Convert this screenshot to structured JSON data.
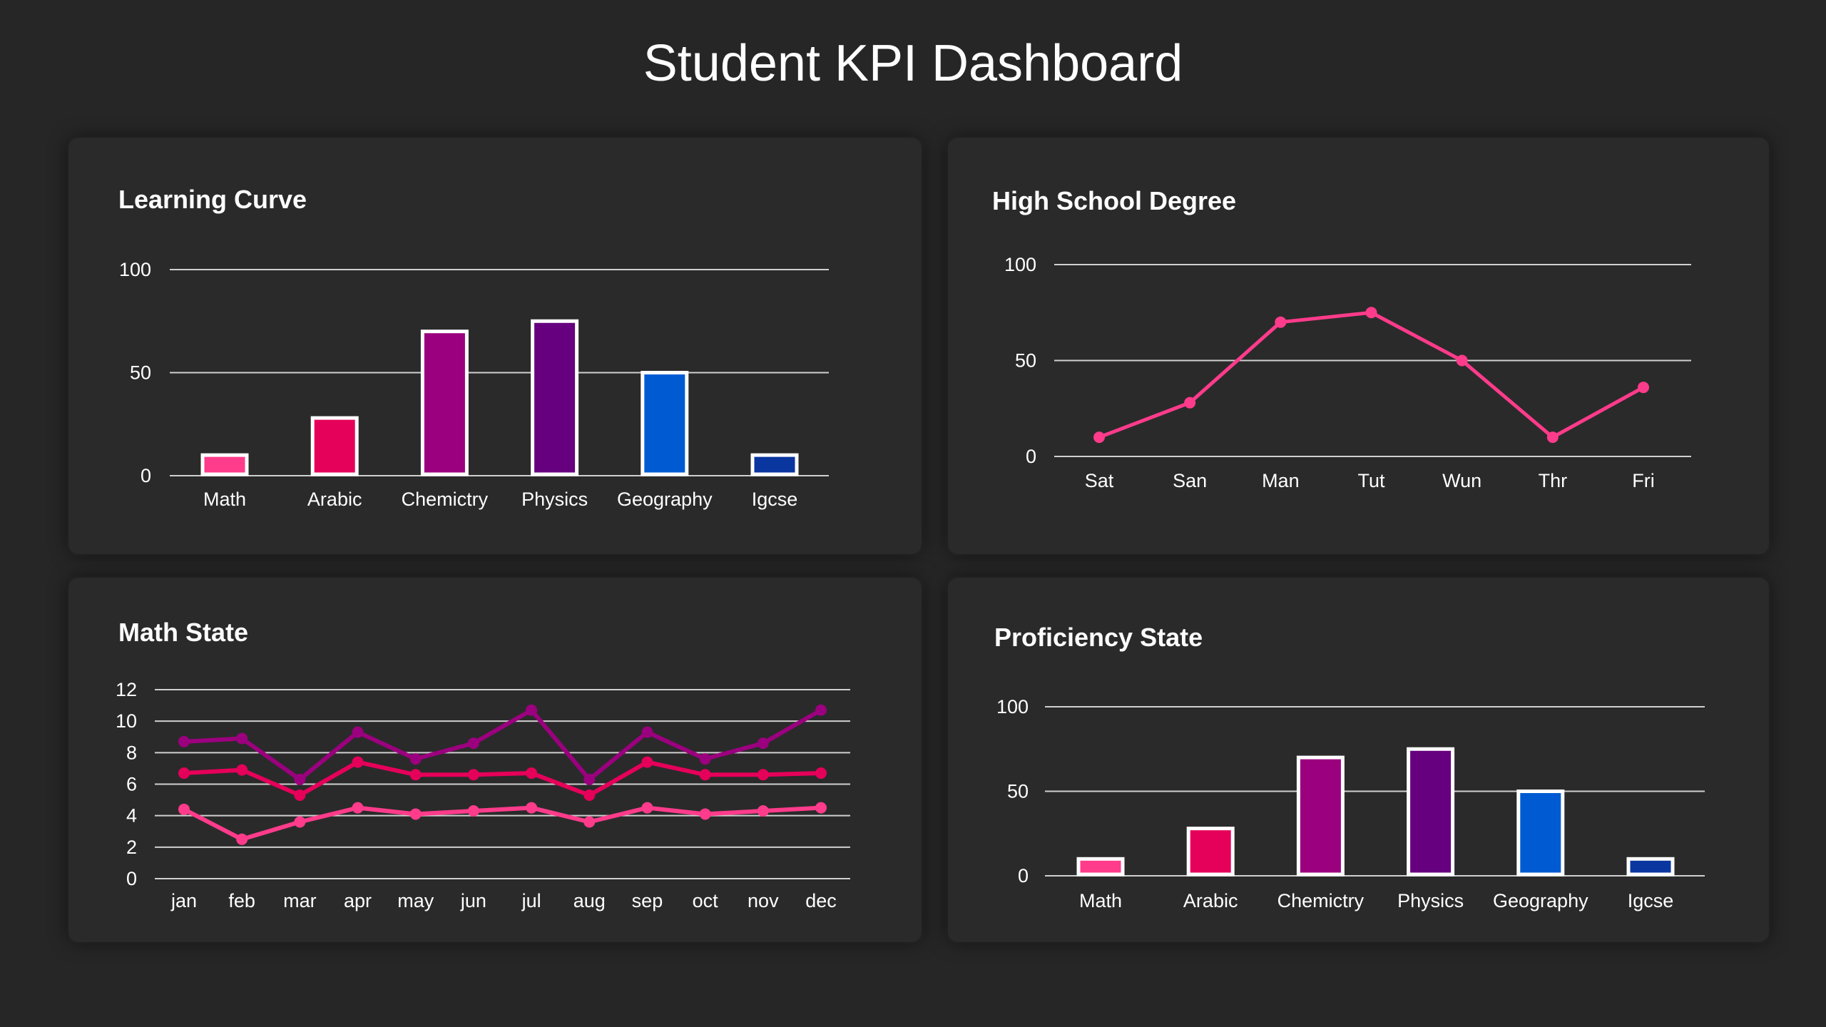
{
  "page": {
    "title": "Student KPI Dashboard"
  },
  "colors": {
    "background": "#262626",
    "card": "#2a2a2a",
    "grid": "#d0d0d0"
  },
  "chart_data": [
    {
      "type": "bar",
      "title": "Learning Curve",
      "categories": [
        "Math",
        "Arabic",
        "Chemictry",
        "Physics",
        "Geography",
        "Igcse"
      ],
      "values": [
        10,
        28,
        70,
        75,
        50,
        10
      ],
      "colors": [
        "#ff3b8b",
        "#e5005a",
        "#9b007e",
        "#66007e",
        "#005bd3",
        "#0a36a0"
      ],
      "yticks": [
        0,
        50,
        100
      ],
      "ylim": [
        0,
        100
      ],
      "grid": true
    },
    {
      "type": "line",
      "title": "High School Degree",
      "categories": [
        "Sat",
        "San",
        "Man",
        "Tut",
        "Wun",
        "Thr",
        "Fri"
      ],
      "series": [
        {
          "values": [
            10,
            28,
            70,
            75,
            50,
            10,
            36
          ],
          "color": "#ff3b8b"
        }
      ],
      "yticks": [
        0,
        50,
        100
      ],
      "ylim": [
        0,
        100
      ],
      "grid": true
    },
    {
      "type": "line",
      "title": "Math State",
      "categories": [
        "jan",
        "feb",
        "mar",
        "apr",
        "may",
        "jun",
        "jul",
        "aug",
        "sep",
        "oct",
        "nov",
        "dec"
      ],
      "series": [
        {
          "values": [
            8.7,
            8.9,
            6.3,
            9.3,
            7.6,
            8.6,
            10.7,
            6.3,
            9.3,
            7.6,
            8.6,
            10.7
          ],
          "color": "#9b007e"
        },
        {
          "values": [
            6.7,
            6.9,
            5.3,
            7.4,
            6.6,
            6.6,
            6.7,
            5.3,
            7.4,
            6.6,
            6.6,
            6.7
          ],
          "color": "#e5005a"
        },
        {
          "values": [
            4.4,
            2.5,
            3.6,
            4.5,
            4.1,
            4.3,
            4.5,
            3.6,
            4.5,
            4.1,
            4.3,
            4.5
          ],
          "color": "#ff3b8b"
        }
      ],
      "yticks": [
        0,
        2,
        4,
        6,
        8,
        10,
        12
      ],
      "ylim": [
        0,
        12
      ],
      "grid": true
    },
    {
      "type": "bar",
      "title": "Proficiency State",
      "categories": [
        "Math",
        "Arabic",
        "Chemictry",
        "Physics",
        "Geography",
        "Igcse"
      ],
      "values": [
        10,
        28,
        70,
        75,
        50,
        10
      ],
      "colors": [
        "#ff3b8b",
        "#e5005a",
        "#9b007e",
        "#66007e",
        "#005bd3",
        "#0a36a0"
      ],
      "yticks": [
        0,
        50,
        100
      ],
      "ylim": [
        0,
        100
      ],
      "grid": true
    }
  ]
}
